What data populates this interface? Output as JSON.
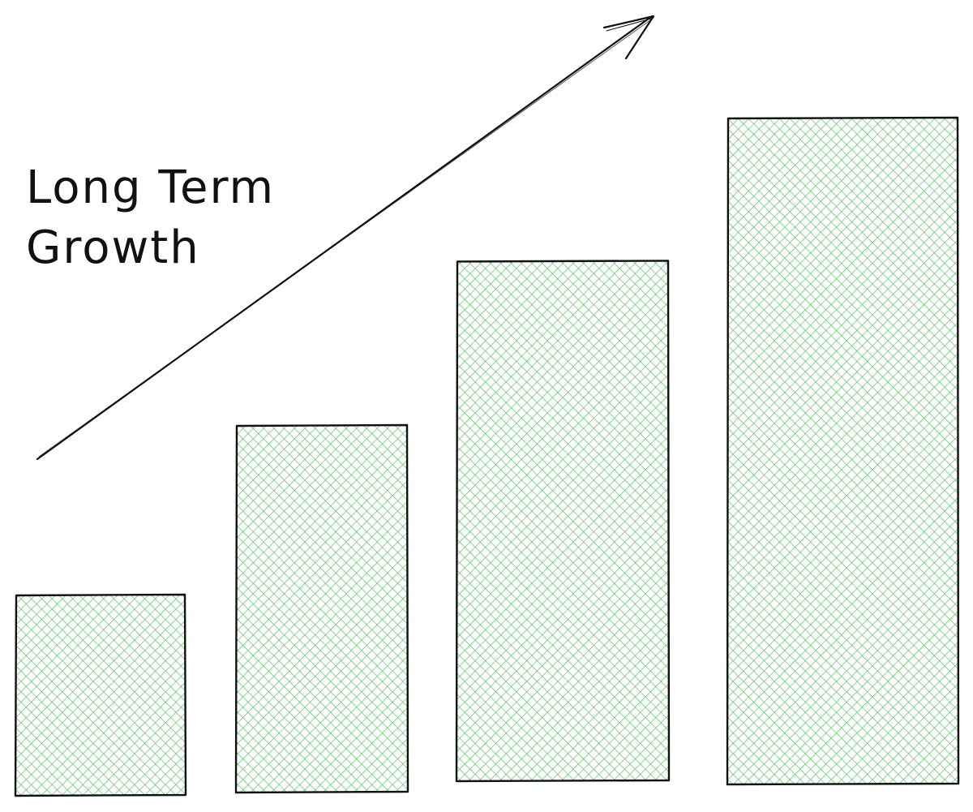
{
  "title_lines": [
    "Long Term",
    "Growth"
  ],
  "colors": {
    "bar_fill": "#4cbf5a",
    "outline": "#111111",
    "background": "#ffffff"
  },
  "bars": [
    {
      "name": "bar-1",
      "relative_height": 0.3
    },
    {
      "name": "bar-2",
      "relative_height": 0.55
    },
    {
      "name": "bar-3",
      "relative_height": 0.78
    },
    {
      "name": "bar-4",
      "relative_height": 1.0
    }
  ],
  "arrow": {
    "direction": "up-right",
    "icon": "trend-arrow-icon"
  }
}
